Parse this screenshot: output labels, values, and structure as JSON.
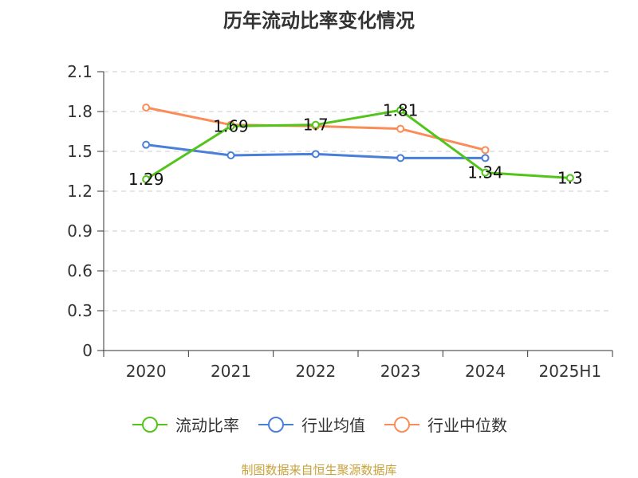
{
  "source_note": "制图数据来自恒生聚源数据库",
  "colors": {
    "source_note": "#c9a23a",
    "grid": "#cccccc",
    "axis": "#333333"
  },
  "chart_data": {
    "type": "line",
    "title": "历年流动比率变化情况",
    "categories": [
      "2020",
      "2021",
      "2022",
      "2023",
      "2024",
      "2025H1"
    ],
    "ylim": [
      0,
      2.1
    ],
    "yticks": [
      "0",
      "0.3",
      "0.6",
      "0.9",
      "1.2",
      "1.5",
      "1.8",
      "2.1"
    ],
    "grid": "horizontal dashed",
    "legend_position": "bottom",
    "series": [
      {
        "name": "流动比率",
        "color": "#52c41a",
        "values": [
          1.29,
          1.69,
          1.7,
          1.81,
          1.34,
          1.3
        ],
        "labels": [
          "1.29",
          "1.69",
          "1.7",
          "1.81",
          "1.34",
          "1.3"
        ]
      },
      {
        "name": "行业均值",
        "color": "#4a7fd9",
        "values": [
          1.55,
          1.47,
          1.48,
          1.45,
          1.45,
          null
        ]
      },
      {
        "name": "行业中位数",
        "color": "#fa8c57",
        "values": [
          1.83,
          1.7,
          1.69,
          1.67,
          1.51,
          null
        ]
      }
    ]
  }
}
